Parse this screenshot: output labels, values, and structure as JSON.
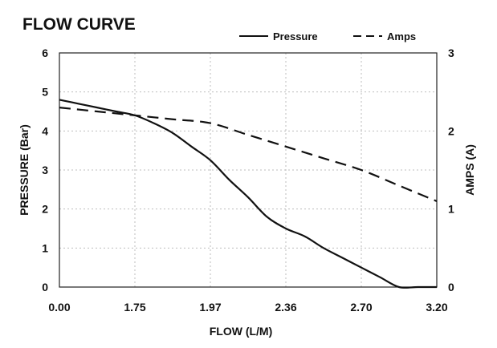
{
  "chart_data": {
    "type": "line",
    "title": "FLOW CURVE",
    "xlabel": "FLOW (L/M)",
    "ylabel": "PRESSURE (Bar)",
    "y2label": "AMPS (A)",
    "x_tick_labels": [
      "0.00",
      "1.75",
      "1.97",
      "2.36",
      "2.70",
      "3.20"
    ],
    "y_ticks": [
      0,
      1,
      2,
      3,
      4,
      5,
      6
    ],
    "y2_ticks": [
      0,
      1,
      2,
      3
    ],
    "ylim": [
      0,
      6
    ],
    "y2lim": [
      0,
      3
    ],
    "grid": true,
    "legend_position": "top-right",
    "series": [
      {
        "name": "Pressure",
        "axis": "left",
        "style": "solid",
        "color": "#111111",
        "x_index": [
          0,
          0.25,
          0.5,
          0.75,
          1,
          1.25,
          1.5,
          1.75,
          2,
          2.25,
          2.5,
          2.75,
          3,
          3.25,
          3.5,
          3.75,
          4,
          4.25,
          4.5,
          4.75,
          5
        ],
        "values": [
          4.8,
          4.7,
          4.6,
          4.5,
          4.4,
          4.2,
          3.95,
          3.6,
          3.25,
          2.75,
          2.3,
          1.8,
          1.5,
          1.3,
          1.0,
          0.75,
          0.5,
          0.25,
          0.0,
          0.0,
          0.0
        ]
      },
      {
        "name": "Amps",
        "axis": "right",
        "style": "dashed",
        "color": "#111111",
        "x_index": [
          0,
          0.5,
          1,
          1.5,
          2,
          2.5,
          3,
          3.5,
          4,
          4.5,
          5
        ],
        "values": [
          2.3,
          2.25,
          2.2,
          2.15,
          2.1,
          1.95,
          1.8,
          1.65,
          1.5,
          1.3,
          1.1
        ]
      }
    ]
  }
}
